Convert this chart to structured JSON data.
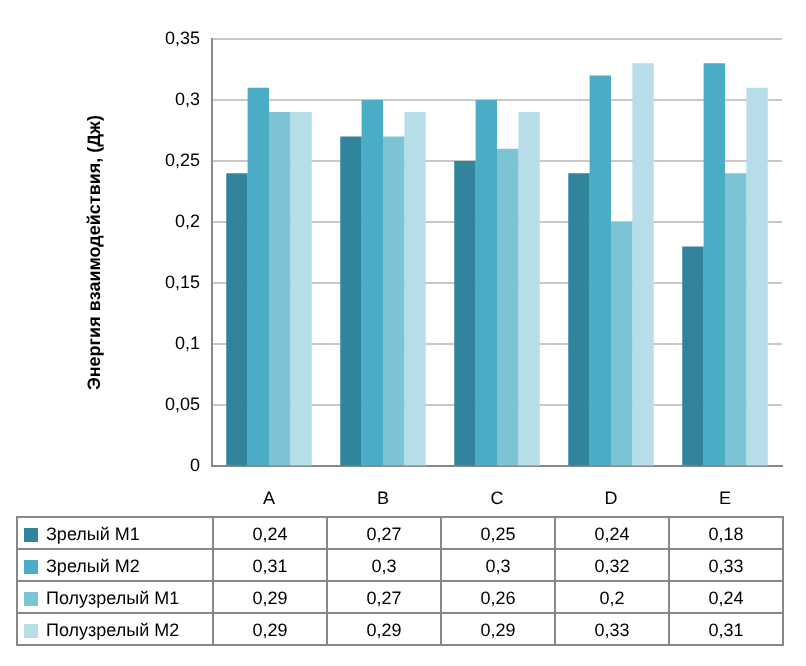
{
  "chart_data": {
    "type": "bar",
    "ylabel": "Энергия взаимодействия, (Дж)",
    "categories": [
      "A",
      "B",
      "C",
      "D",
      "E"
    ],
    "series": [
      {
        "name": "Зрелый М1",
        "color": "#31849b",
        "values": [
          0.24,
          0.27,
          0.25,
          0.24,
          0.18
        ],
        "value_labels": [
          "0,24",
          "0,27",
          "0,25",
          "0,24",
          "0,18"
        ]
      },
      {
        "name": "Зрелый М2",
        "color": "#4bacc6",
        "values": [
          0.31,
          0.3,
          0.3,
          0.32,
          0.33
        ],
        "value_labels": [
          "0,31",
          "0,3",
          "0,3",
          "0,32",
          "0,33"
        ]
      },
      {
        "name": "Полузрелый М1",
        "color": "#7cc3d6",
        "values": [
          0.29,
          0.27,
          0.26,
          0.2,
          0.24
        ],
        "value_labels": [
          "0,29",
          "0,27",
          "0,26",
          "0,2",
          "0,24"
        ]
      },
      {
        "name": "Полузрелый М2",
        "color": "#b7dee8",
        "values": [
          0.29,
          0.29,
          0.29,
          0.33,
          0.31
        ],
        "value_labels": [
          "0,29",
          "0,29",
          "0,29",
          "0,33",
          "0,31"
        ]
      }
    ],
    "ylim": [
      0,
      0.35
    ],
    "yticks": [
      0,
      {
        "value": 0.05,
        "label": "0,05"
      },
      {
        "value": 0.1,
        "label": "0,1"
      },
      {
        "value": 0.15,
        "label": "0,15"
      },
      {
        "value": 0.2,
        "label": "0,2"
      },
      {
        "value": 0.25,
        "label": "0,25"
      },
      {
        "value": 0.3,
        "label": "0,3"
      },
      {
        "value": 0.35,
        "label": "0,35"
      }
    ],
    "grid": "y",
    "legend": "bottom"
  }
}
